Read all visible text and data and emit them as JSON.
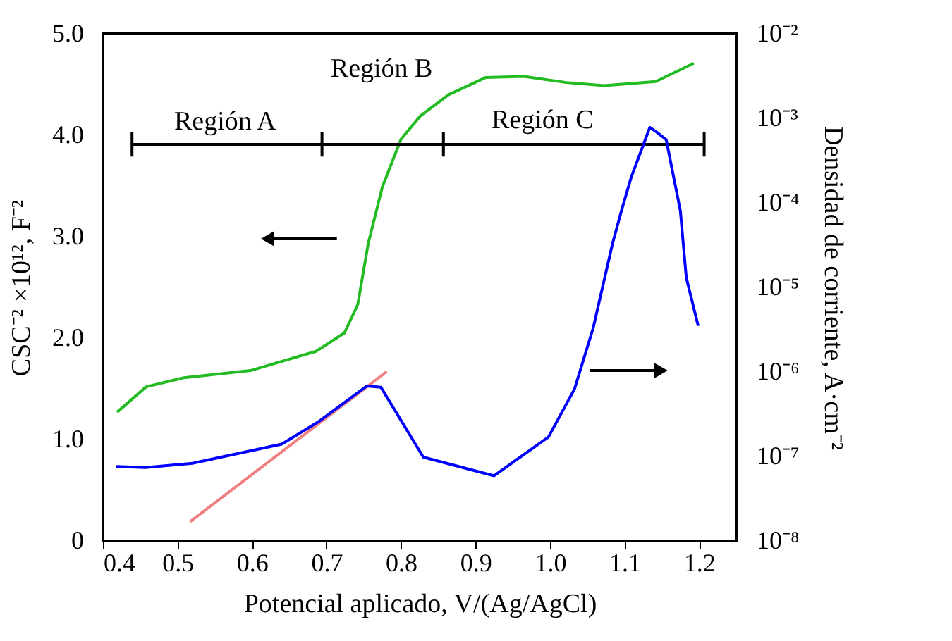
{
  "chart_data": {
    "type": "line",
    "xlabel": "Potencial aplicado, V/(Ag/AgCl)",
    "ylabel": "CSC⁻² ×10¹², F⁻²",
    "y2label": "Densidad de corriente, A·cm⁻²",
    "xlim": [
      0.4,
      1.25
    ],
    "xticks": [
      {
        "value": 0.4,
        "label": "0.4"
      },
      {
        "value": 0.5,
        "label": "0.5"
      },
      {
        "value": 0.6,
        "label": "0.6"
      },
      {
        "value": 0.7,
        "label": "0.7"
      },
      {
        "value": 0.8,
        "label": "0.8"
      },
      {
        "value": 0.9,
        "label": "0.9"
      },
      {
        "value": 1.0,
        "label": "1.0"
      },
      {
        "value": 1.1,
        "label": "1.1"
      },
      {
        "value": 1.2,
        "label": "1.2"
      }
    ],
    "ylim": [
      0,
      5
    ],
    "yticks": [
      0,
      {
        "value": 1,
        "label": "1.0"
      },
      {
        "value": 2,
        "label": "2.0"
      },
      {
        "value": 3,
        "label": "3.0"
      },
      {
        "value": 4,
        "label": "4.0"
      },
      {
        "value": 5,
        "label": "5.0"
      }
    ],
    "y2lim": [
      1e-08,
      0.01
    ],
    "y2ticks": [
      {
        "value": 1e-08,
        "label": "10⁻⁸"
      },
      {
        "value": 1e-07,
        "label": "10⁻⁷"
      },
      {
        "value": 1e-06,
        "label": "10⁻⁶"
      },
      {
        "value": 1e-05,
        "label": "10⁻⁵"
      },
      {
        "value": 0.0001,
        "label": "10⁻⁴"
      },
      {
        "value": 0.001,
        "label": "10⁻³"
      },
      {
        "value": 0.01,
        "label": "10⁻²"
      }
    ],
    "log": "y2",
    "grid": false,
    "marker": "none",
    "line_style": "solid",
    "series": [
      {
        "color": "#22bb22",
        "x": [
          0.419,
          0.458,
          0.509,
          0.598,
          0.686,
          0.724,
          0.742,
          0.756,
          0.775,
          0.8,
          0.826,
          0.864,
          0.914,
          0.965,
          1.022,
          1.073,
          1.142,
          1.193
        ],
        "values": [
          1.27,
          1.52,
          1.61,
          1.68,
          1.87,
          2.05,
          2.33,
          2.93,
          3.49,
          3.96,
          4.19,
          4.4,
          4.57,
          4.58,
          4.52,
          4.49,
          4.53,
          4.71
        ]
      },
      {
        "color": "#0000ff",
        "axis": "y2",
        "x": [
          0.418,
          0.457,
          0.52,
          0.64,
          0.69,
          0.754,
          0.773,
          0.83,
          0.925,
          0.998,
          1.033,
          1.058,
          1.084,
          1.096,
          1.109,
          1.134,
          1.143,
          1.156,
          1.175,
          1.183,
          1.199
        ],
        "values": [
          7.6e-08,
          7.4e-08,
          8.3e-08,
          1.4e-07,
          2.6e-07,
          6.8e-07,
          6.6e-07,
          9.8e-08,
          5.9e-08,
          1.7e-07,
          6.3e-07,
          3.3e-06,
          3.3e-05,
          8.1e-05,
          0.0002,
          0.00078,
          0.00069,
          0.00056,
          8.1e-05,
          1.3e-05,
          3.5e-06
        ]
      },
      {
        "color": "#f08080",
        "x": [
          0.517,
          0.781
        ],
        "values": [
          0.19,
          1.67
        ]
      }
    ],
    "annotations": [
      "Región A",
      "Región B",
      "Región C"
    ]
  }
}
